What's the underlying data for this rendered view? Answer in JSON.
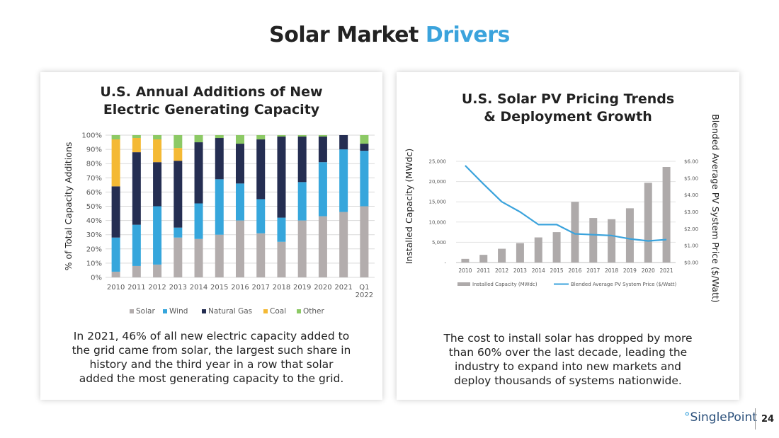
{
  "page": {
    "title_main": "Solar Market",
    "title_accent": "Drivers",
    "brand": "SinglePoint",
    "page_number": "24"
  },
  "colors": {
    "accent": "#3ba3dc",
    "solar": "#b3adad",
    "wind": "#36a6dc",
    "natural_gas": "#252e52",
    "coal": "#f4b934",
    "other": "#8cc965"
  },
  "left_card": {
    "title_line1": "U.S. Annual Additions of New",
    "title_line2": "Electric Generating Capacity",
    "body_lines": [
      "In 2021, 46% of all new electric capacity added to",
      "the grid came from solar, the largest such share in",
      "history and the third year in a row that solar",
      "added the most generating capacity to the grid."
    ]
  },
  "right_card": {
    "title_line1": "U.S. Solar PV Pricing Trends",
    "title_line2": "& Deployment Growth",
    "body_lines": [
      "The cost to install solar has dropped by more",
      "than 60% over the last decade, leading the",
      "industry to expand into new markets and",
      "deploy thousands of systems nationwide."
    ]
  },
  "chart_data": [
    {
      "type": "bar",
      "stacked": true,
      "title": "U.S. Annual Additions of New Electric Generating Capacity",
      "ylabel": "% of Total Capacity Additions",
      "ylim": [
        0,
        100
      ],
      "yticks": [
        "0%",
        "10%",
        "20%",
        "30%",
        "40%",
        "50%",
        "60%",
        "70%",
        "80%",
        "90%",
        "100%"
      ],
      "categories": [
        "2010",
        "2011",
        "2012",
        "2013",
        "2014",
        "2015",
        "2016",
        "2017",
        "2018",
        "2019",
        "2020",
        "2021",
        "Q1 2022"
      ],
      "category_lines": [
        [
          "2010"
        ],
        [
          "2011"
        ],
        [
          "2012"
        ],
        [
          "2013"
        ],
        [
          "2014"
        ],
        [
          "2015"
        ],
        [
          "2016"
        ],
        [
          "2017"
        ],
        [
          "2018"
        ],
        [
          "2019"
        ],
        [
          "2020"
        ],
        [
          "2021"
        ],
        [
          "Q1",
          "2022"
        ]
      ],
      "legend_position": "bottom",
      "series": [
        {
          "name": "Solar",
          "color": "#b3adad",
          "values": [
            4,
            8,
            9,
            28,
            27,
            30,
            40,
            31,
            25,
            40,
            43,
            46,
            50
          ]
        },
        {
          "name": "Wind",
          "color": "#36a6dc",
          "values": [
            24,
            29,
            41,
            7,
            25,
            39,
            26,
            24,
            17,
            27,
            38,
            44,
            39
          ]
        },
        {
          "name": "Natural Gas",
          "color": "#252e52",
          "values": [
            36,
            51,
            31,
            47,
            43,
            29,
            28,
            42,
            57,
            32,
            18,
            10,
            5
          ]
        },
        {
          "name": "Coal",
          "color": "#f4b934",
          "values": [
            33,
            10,
            16,
            9,
            0,
            0,
            0,
            0,
            0,
            0,
            0,
            0,
            0
          ]
        },
        {
          "name": "Other",
          "color": "#8cc965",
          "values": [
            3,
            2,
            3,
            9,
            5,
            2,
            6,
            3,
            1,
            1,
            1,
            0,
            6
          ]
        }
      ]
    },
    {
      "type": "bar+line",
      "title": "U.S. Solar PV Pricing Trends & Deployment Growth",
      "ylabel": "Installed Capacity (MWdc)",
      "y2label": "Blended Average PV System Price ($/Watt)",
      "ylim": [
        0,
        25000
      ],
      "y2lim": [
        0,
        6
      ],
      "yticks": [
        "-",
        "5,000",
        "10,000",
        "15,000",
        "20,000",
        "25,000"
      ],
      "y2ticks": [
        "$0.00",
        "$1.00",
        "$2.00",
        "$3.00",
        "$4.00",
        "$5.00",
        "$6.00"
      ],
      "categories": [
        "2010",
        "2011",
        "2012",
        "2013",
        "2014",
        "2015",
        "2016",
        "2017",
        "2018",
        "2019",
        "2020",
        "2021"
      ],
      "legend_position": "bottom",
      "series": [
        {
          "name": "Installed Capacity (MWdc)",
          "kind": "bar",
          "axis": "left",
          "color": "#aeaaaa",
          "values": [
            900,
            1900,
            3400,
            4800,
            6200,
            7500,
            15000,
            11000,
            10700,
            13400,
            19700,
            23600
          ]
        },
        {
          "name": "Blended Average PV System Price ($/Watt)",
          "kind": "line",
          "axis": "right",
          "color": "#3ba3dc",
          "values": [
            5.75,
            4.65,
            3.6,
            3.0,
            2.25,
            2.25,
            1.7,
            1.65,
            1.6,
            1.4,
            1.28,
            1.36
          ]
        }
      ]
    }
  ]
}
